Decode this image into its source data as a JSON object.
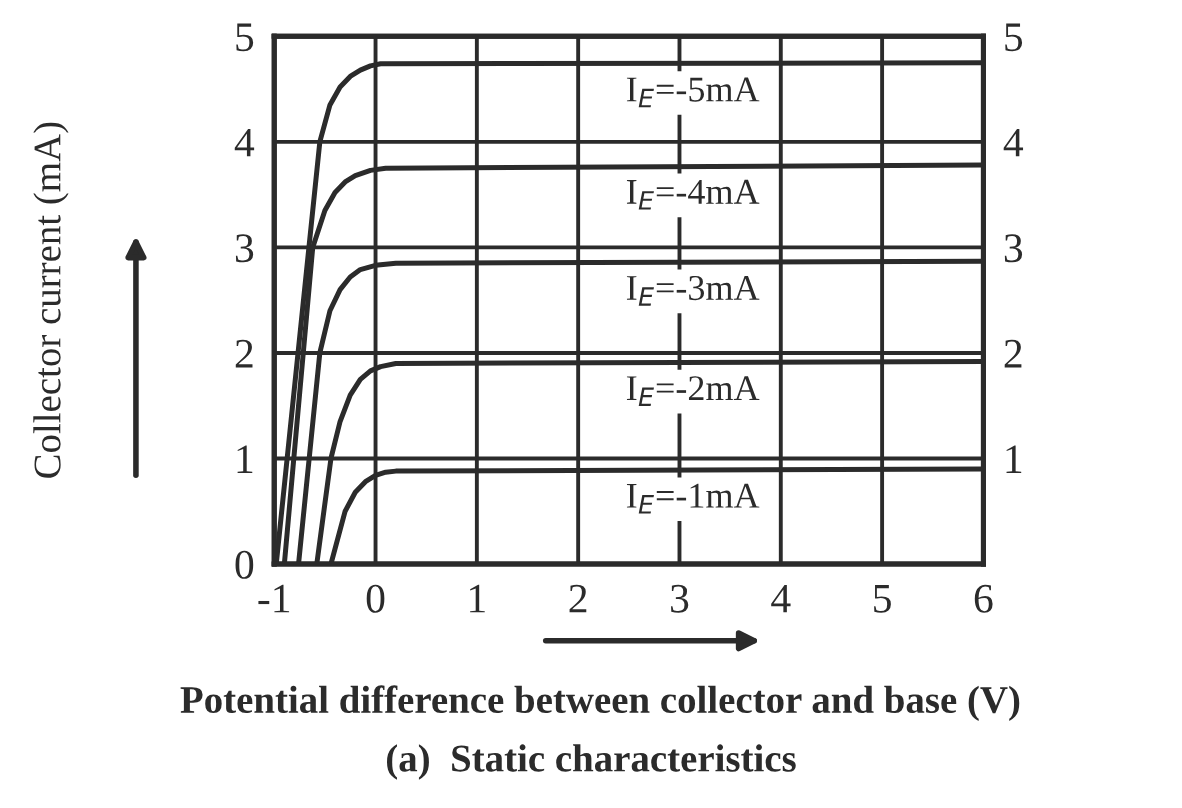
{
  "chart_data": {
    "type": "line",
    "xlabel": "Potential difference between collector and base (V)",
    "ylabel": "Collector current (mA)",
    "annotations": [
      "(a)  Static characteristics"
    ],
    "xlim": [
      -1,
      6
    ],
    "xticks": [
      -1,
      0,
      1,
      2,
      3,
      4,
      5,
      6
    ],
    "ylim": [
      0,
      5
    ],
    "yticks": [
      0,
      1,
      2,
      3,
      4,
      5
    ],
    "y2lim": [
      0,
      5
    ],
    "y2ticks": [
      1,
      2,
      3,
      4,
      5
    ],
    "grid": true,
    "series": [
      {
        "name": "I$_{E}$=-5mA",
        "color": "#2b2b2b",
        "x": [
          -0.98,
          -0.55,
          -0.45,
          -0.35,
          -0.25,
          -0.15,
          -0.05,
          0.05,
          6
        ],
        "values": [
          0,
          4,
          4.35,
          4.52,
          4.62,
          4.68,
          4.72,
          4.74,
          4.75
        ]
      },
      {
        "name": "I$_{E}$=-4mA",
        "color": "#2b2b2b",
        "x": [
          -0.9,
          -0.62,
          -0.5,
          -0.4,
          -0.3,
          -0.2,
          -0.05,
          0.1,
          6
        ],
        "values": [
          0,
          3,
          3.35,
          3.52,
          3.62,
          3.68,
          3.73,
          3.75,
          3.78
        ]
      },
      {
        "name": "I$_{E}$=-3mA",
        "color": "#2b2b2b",
        "x": [
          -0.76,
          -0.55,
          -0.45,
          -0.35,
          -0.25,
          -0.15,
          0,
          0.2,
          6
        ],
        "values": [
          0,
          2,
          2.4,
          2.6,
          2.72,
          2.79,
          2.83,
          2.85,
          2.87
        ]
      },
      {
        "name": "I$_{E}$=-2mA",
        "color": "#2b2b2b",
        "x": [
          -0.58,
          -0.44,
          -0.35,
          -0.25,
          -0.15,
          -0.05,
          0.05,
          0.2,
          6
        ],
        "values": [
          0,
          1,
          1.35,
          1.6,
          1.75,
          1.83,
          1.87,
          1.9,
          1.92
        ]
      },
      {
        "name": "I$_{E}$=-1mA",
        "color": "#2b2b2b",
        "x": [
          -0.44,
          -0.3,
          -0.2,
          -0.1,
          0,
          0.1,
          0.2,
          6
        ],
        "values": [
          0,
          0.5,
          0.68,
          0.78,
          0.84,
          0.87,
          0.88,
          0.9
        ]
      }
    ]
  }
}
